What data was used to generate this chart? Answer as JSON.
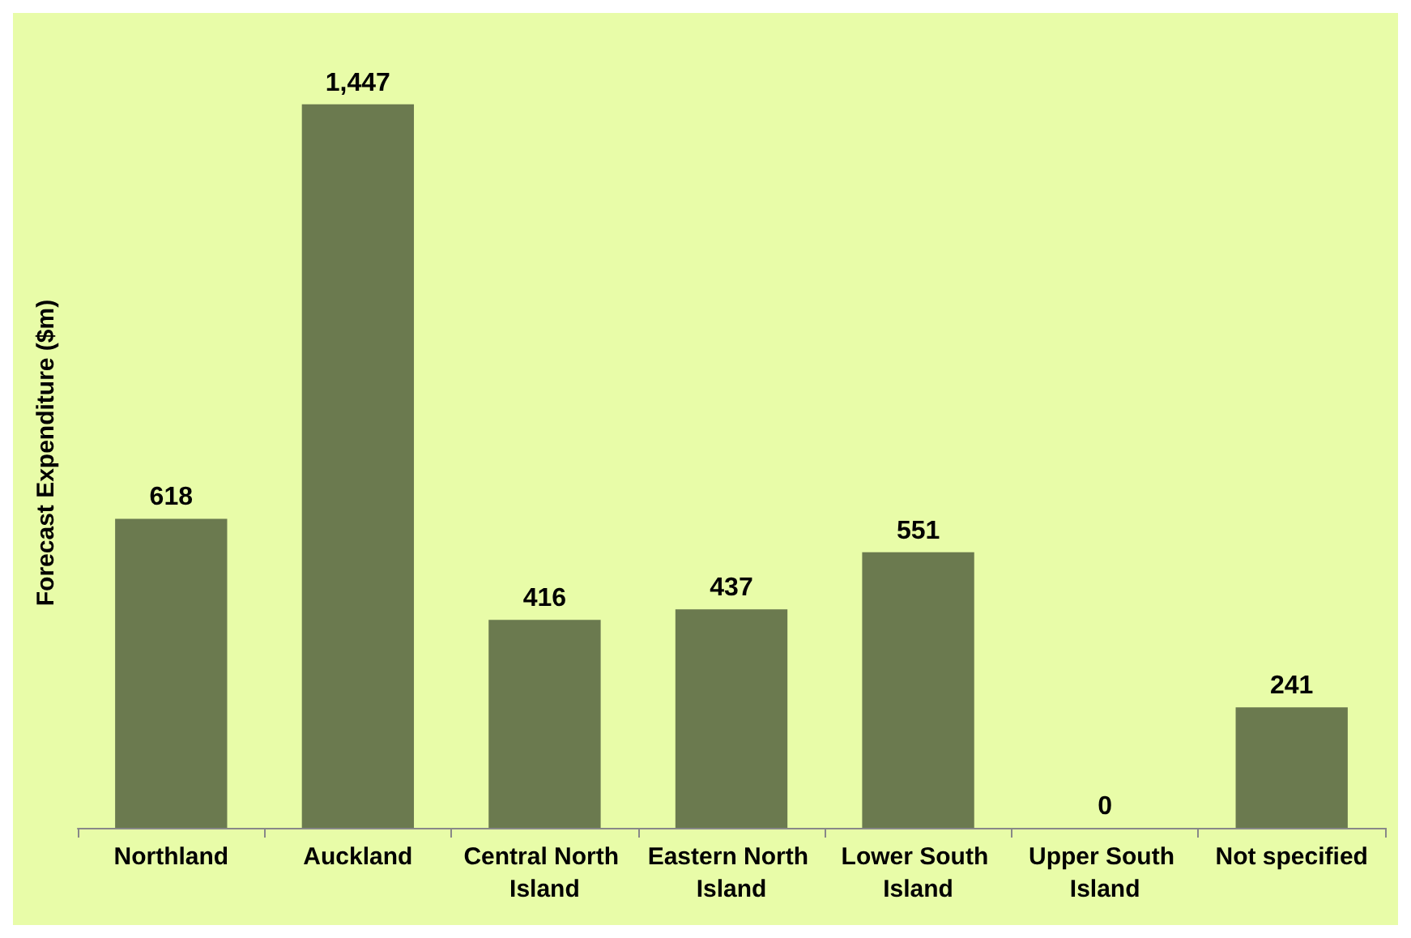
{
  "chart_data": {
    "type": "bar",
    "ylabel": "Forecast Expenditure ($m)",
    "categories": [
      "Northland",
      "Auckland",
      "Central North Island",
      "Eastern North Island",
      "Lower South Island",
      "Upper South Island",
      "Not specified"
    ],
    "values": [
      618,
      1447,
      416,
      437,
      551,
      0,
      241
    ],
    "value_labels": [
      "618",
      "1,447",
      "416",
      "437",
      "551",
      "0",
      "241"
    ],
    "color": "#6b7a4f"
  }
}
